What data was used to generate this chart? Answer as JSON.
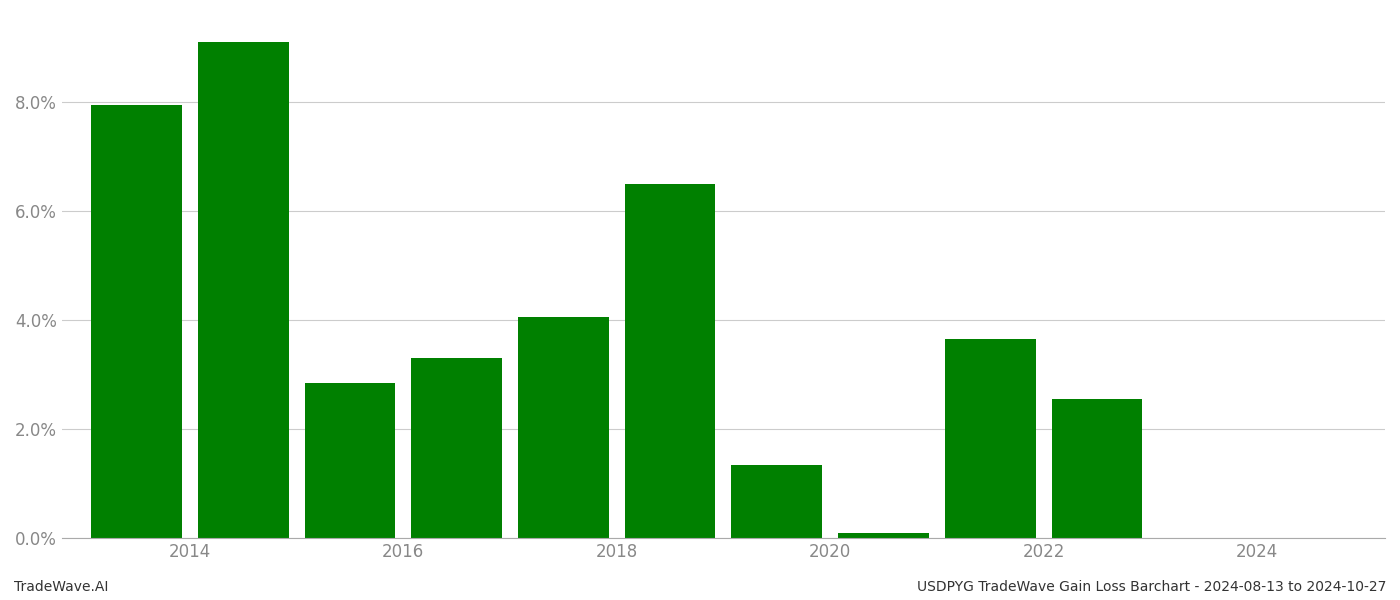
{
  "years": [
    2013.5,
    2014.5,
    2015.5,
    2016.5,
    2017.5,
    2018.5,
    2019.5,
    2020.5,
    2021.5,
    2022.5
  ],
  "values": [
    0.0795,
    0.091,
    0.0285,
    0.033,
    0.0405,
    0.065,
    0.0135,
    0.001,
    0.0365,
    0.0255
  ],
  "bar_color": "#008000",
  "background_color": "#ffffff",
  "grid_color": "#cccccc",
  "xlabel_color": "#888888",
  "ylabel_color": "#888888",
  "bottom_left_text": "TradeWave.AI",
  "bottom_right_text": "USDPYG TradeWave Gain Loss Barchart - 2024-08-13 to 2024-10-27",
  "ylim": [
    0,
    0.096
  ],
  "ytick_values": [
    0.0,
    0.02,
    0.04,
    0.06,
    0.08
  ],
  "xtick_values": [
    2014,
    2016,
    2018,
    2020,
    2022,
    2024
  ],
  "bar_width": 0.85,
  "xlim_left": 2012.8,
  "xlim_right": 2025.2
}
